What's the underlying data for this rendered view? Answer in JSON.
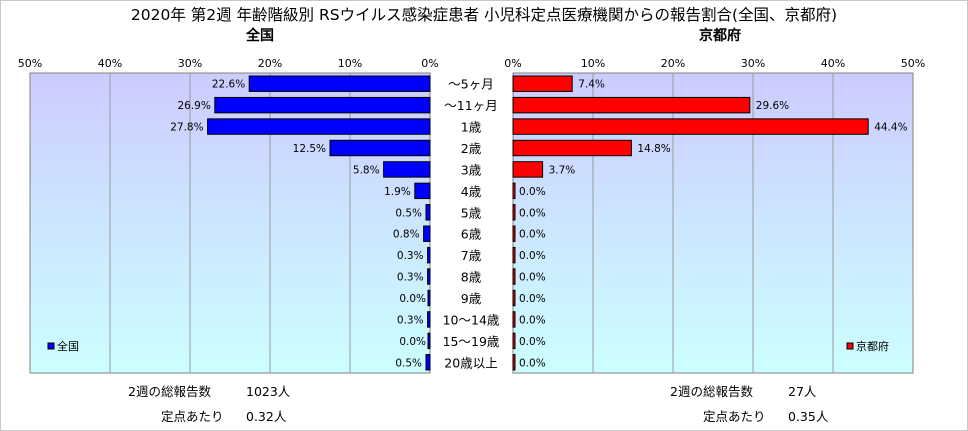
{
  "title": "2020年 第2週 年齢階級別 RSウイルス感染症患者 小児科定点医療機関からの報告割合(全国、京都府)",
  "chart_data": [
    {
      "type": "bar",
      "orientation": "horizontal",
      "subtitle": "全国",
      "legend": {
        "label": "全国",
        "position": "bottom-left"
      },
      "color": "#0000ff",
      "categories": [
        "～5ヶ月",
        "～11ヶ月",
        "1歳",
        "2歳",
        "3歳",
        "4歳",
        "5歳",
        "6歳",
        "7歳",
        "8歳",
        "9歳",
        "10～14歳",
        "15～19歳",
        "20歳以上"
      ],
      "values": [
        22.6,
        26.9,
        27.8,
        12.5,
        5.8,
        1.9,
        0.5,
        0.8,
        0.3,
        0.3,
        0.0,
        0.3,
        0.0,
        0.5
      ],
      "value_labels": [
        "22.6%",
        "26.9%",
        "27.8%",
        "12.5%",
        "5.8%",
        "1.9%",
        "0.5%",
        "0.8%",
        "0.3%",
        "0.3%",
        "0.0%",
        "0.3%",
        "0.0%",
        "0.5%"
      ],
      "xlim": [
        0,
        50
      ],
      "x_direction": "reversed",
      "xticks": [
        "50%",
        "40%",
        "30%",
        "20%",
        "10%",
        "0%"
      ],
      "grid": true,
      "footer": {
        "total_label": "2週の総報告数",
        "total_value": "1023人",
        "per_site_label": "定点あたり",
        "per_site_value": "0.32人"
      }
    },
    {
      "type": "bar",
      "orientation": "horizontal",
      "subtitle": "京都府",
      "legend": {
        "label": "京都府",
        "position": "bottom-right"
      },
      "color": "#ff0000",
      "categories": [
        "～5ヶ月",
        "～11ヶ月",
        "1歳",
        "2歳",
        "3歳",
        "4歳",
        "5歳",
        "6歳",
        "7歳",
        "8歳",
        "9歳",
        "10～14歳",
        "15～19歳",
        "20歳以上"
      ],
      "values": [
        7.4,
        29.6,
        44.4,
        14.8,
        3.7,
        0.0,
        0.0,
        0.0,
        0.0,
        0.0,
        0.0,
        0.0,
        0.0,
        0.0
      ],
      "value_labels": [
        "7.4%",
        "29.6%",
        "44.4%",
        "14.8%",
        "3.7%",
        "0.0%",
        "0.0%",
        "0.0%",
        "0.0%",
        "0.0%",
        "0.0%",
        "0.0%",
        "0.0%",
        "0.0%"
      ],
      "xlim": [
        0,
        50
      ],
      "xticks": [
        "0%",
        "10%",
        "20%",
        "30%",
        "40%",
        "50%"
      ],
      "grid": true,
      "footer": {
        "total_label": "2週の総報告数",
        "total_value": "27人",
        "per_site_label": "定点あたり",
        "per_site_value": "0.35人"
      }
    }
  ]
}
